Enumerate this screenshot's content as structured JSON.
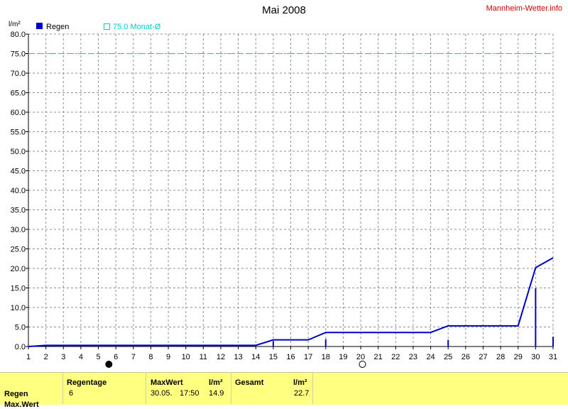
{
  "header": {
    "title": "Mai 2008",
    "site": "Mannheim-Wetter.info"
  },
  "chart_data": {
    "type": "line",
    "title": "Mai 2008",
    "ylabel": "l/m²",
    "ylim": [
      0,
      80
    ],
    "yticks": [
      "0.0",
      "5.0",
      "10.0",
      "15.0",
      "20.0",
      "25.0",
      "30.0",
      "35.0",
      "40.0",
      "45.0",
      "50.0",
      "55.0",
      "60.0",
      "65.0",
      "70.0",
      "75.0",
      "80.0"
    ],
    "xticks": [
      "1",
      "2",
      "3",
      "4",
      "5",
      "6",
      "7",
      "8",
      "9",
      "10",
      "11",
      "12",
      "13",
      "14",
      "15",
      "16",
      "17",
      "18",
      "19",
      "20",
      "21",
      "22",
      "23",
      "24",
      "25",
      "26",
      "27",
      "28",
      "29",
      "30",
      "31"
    ],
    "xlim": [
      1,
      31
    ],
    "grid": true,
    "legend": [
      {
        "label": "Regen",
        "color": "#0000cc"
      },
      {
        "label": "75.0 Monat-Ø",
        "color": "#00cccc"
      }
    ],
    "reference_line": {
      "value": 75.0,
      "color": "#00cccc"
    },
    "series": [
      {
        "name": "Regen",
        "color": "#0000cc",
        "cumulative": [
          [
            1,
            0.0
          ],
          [
            2,
            0.3
          ],
          [
            3,
            0.3
          ],
          [
            4,
            0.3
          ],
          [
            5,
            0.3
          ],
          [
            6,
            0.3
          ],
          [
            7,
            0.3
          ],
          [
            8,
            0.3
          ],
          [
            9,
            0.3
          ],
          [
            10,
            0.3
          ],
          [
            11,
            0.3
          ],
          [
            12,
            0.3
          ],
          [
            13,
            0.3
          ],
          [
            14,
            0.3
          ],
          [
            15,
            1.7
          ],
          [
            16,
            1.7
          ],
          [
            17,
            1.7
          ],
          [
            18,
            3.6
          ],
          [
            19,
            3.6
          ],
          [
            20,
            3.6
          ],
          [
            21,
            3.6
          ],
          [
            22,
            3.6
          ],
          [
            23,
            3.6
          ],
          [
            24,
            3.6
          ],
          [
            25,
            5.3
          ],
          [
            26,
            5.3
          ],
          [
            27,
            5.3
          ],
          [
            28,
            5.3
          ],
          [
            29,
            5.3
          ],
          [
            30,
            20.2
          ],
          [
            31,
            22.7
          ]
        ],
        "daily": [
          [
            2,
            0.3
          ],
          [
            15,
            1.4
          ],
          [
            18,
            1.9
          ],
          [
            25,
            1.7
          ],
          [
            30,
            14.9
          ],
          [
            31,
            2.5
          ]
        ]
      }
    ],
    "moon_phases": [
      {
        "day": 5.6,
        "phase": "new"
      },
      {
        "day": 20.1,
        "phase": "full"
      }
    ]
  },
  "table": {
    "row_label": "Regen",
    "row_label2": "Max.Wert",
    "regentage": {
      "label": "Regentage",
      "value": "6"
    },
    "maxwert": {
      "label": "MaxWert",
      "unit": "l/m²",
      "date": "30.05.",
      "time": "17:50",
      "value": "14.9"
    },
    "gesamt": {
      "label": "Gesamt",
      "unit": "l/m²",
      "value": "22.7"
    }
  }
}
